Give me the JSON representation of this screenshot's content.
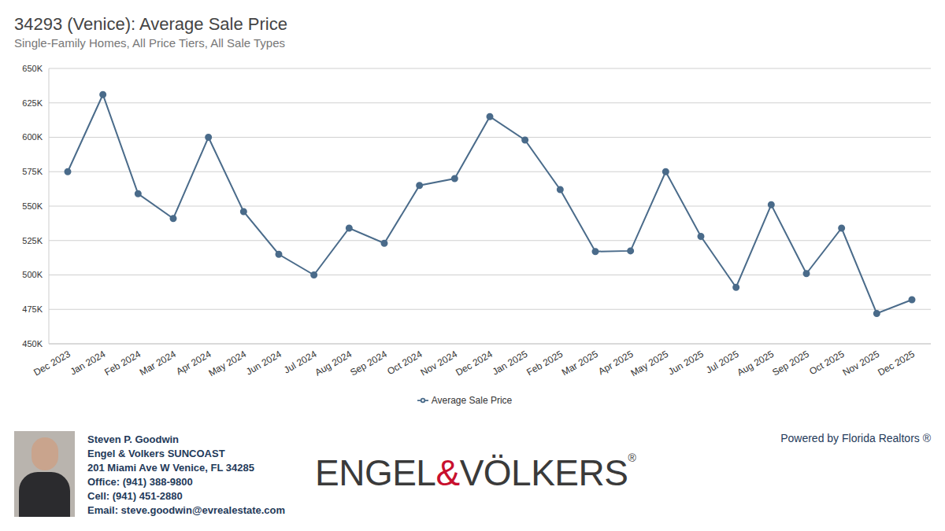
{
  "chart_data": {
    "type": "line",
    "title": "34293 (Venice): Average Sale Price",
    "subtitle": "Single-Family Homes, All Price Tiers, All Sale Types",
    "categories": [
      "Dec 2023",
      "Jan 2024",
      "Feb 2024",
      "Mar 2024",
      "Apr 2024",
      "May 2024",
      "Jun 2024",
      "Jul 2024",
      "Aug 2024",
      "Sep 2024",
      "Oct 2024",
      "Nov 2024",
      "Dec 2024",
      "Jan 2025",
      "Feb 2025",
      "Mar 2025",
      "Apr 2025",
      "May 2025",
      "Jun 2025",
      "Jul 2025",
      "Aug 2025",
      "Sep 2025",
      "Oct 2025",
      "Nov 2025",
      "Dec 2025"
    ],
    "series": [
      {
        "name": "Average Sale Price",
        "color": "#4a6b8a",
        "marker": "circle",
        "line_style": "solid",
        "values": [
          575000,
          631000,
          559000,
          541000,
          600000,
          546000,
          515000,
          500000,
          534000,
          523000,
          565000,
          570000,
          615000,
          598000,
          562000,
          517000,
          517500,
          575000,
          528000,
          491000,
          551000,
          501000,
          534000,
          472000,
          482000
        ]
      }
    ],
    "ylim": [
      450000,
      650000
    ],
    "yticks": [
      {
        "value": 450000,
        "label": "450K"
      },
      {
        "value": 475000,
        "label": "475K"
      },
      {
        "value": 500000,
        "label": "500K"
      },
      {
        "value": 525000,
        "label": "525K"
      },
      {
        "value": 550000,
        "label": "550K"
      },
      {
        "value": 575000,
        "label": "575K"
      },
      {
        "value": 600000,
        "label": "600K"
      },
      {
        "value": 625000,
        "label": "625K"
      },
      {
        "value": 650000,
        "label": "650K"
      }
    ],
    "grid": true,
    "legend": "bottom"
  },
  "footer": {
    "agent_lines": [
      "Steven P. Goodwin",
      "Engel & Volkers SUNCOAST",
      "201 Miami Ave W Venice, FL 34285",
      "Office: (941) 388-9800",
      "Cell: (941) 451-2880",
      "Email: steve.goodwin@evrealestate.com"
    ],
    "logo": "ENGEL&VÖLKERS",
    "logo_mark": "®",
    "powered_by": "Powered by Florida Realtors ®"
  }
}
